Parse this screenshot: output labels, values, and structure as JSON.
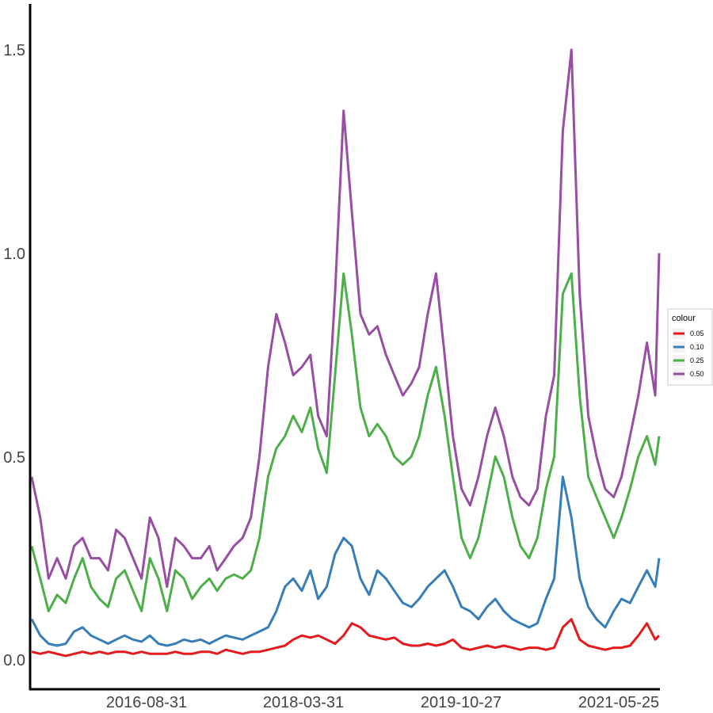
{
  "chart_data": {
    "type": "line",
    "title": "",
    "xlabel": "",
    "ylabel": "",
    "x_ticks": [
      "2016-08-31",
      "2018-03-31",
      "2019-10-27",
      "2021-05-25"
    ],
    "x_range": [
      "2015-05-01",
      "2021-07-15"
    ],
    "y_ticks": [
      "0.0",
      "0.5",
      "1.0",
      "1.5"
    ],
    "y_tick_values": [
      0.0,
      0.5,
      1.0,
      1.5
    ],
    "ylim": [
      -0.07,
      1.62
    ],
    "grid": false,
    "legend": {
      "title": "colour",
      "position": "right"
    },
    "x": [
      "2015-05-01",
      "2015-06-01",
      "2015-07-01",
      "2015-08-01",
      "2015-09-01",
      "2015-10-01",
      "2015-11-01",
      "2015-12-01",
      "2016-01-01",
      "2016-02-01",
      "2016-03-01",
      "2016-04-01",
      "2016-05-01",
      "2016-06-01",
      "2016-07-01",
      "2016-08-01",
      "2016-09-01",
      "2016-10-01",
      "2016-11-01",
      "2016-12-01",
      "2017-01-01",
      "2017-02-01",
      "2017-03-01",
      "2017-04-01",
      "2017-05-01",
      "2017-06-01",
      "2017-07-01",
      "2017-08-01",
      "2017-09-01",
      "2017-10-01",
      "2017-11-01",
      "2017-12-01",
      "2018-01-01",
      "2018-02-01",
      "2018-03-01",
      "2018-04-01",
      "2018-05-01",
      "2018-06-01",
      "2018-07-01",
      "2018-08-01",
      "2018-09-01",
      "2018-10-01",
      "2018-11-01",
      "2018-12-01",
      "2019-01-01",
      "2019-02-01",
      "2019-03-01",
      "2019-04-01",
      "2019-05-01",
      "2019-06-01",
      "2019-07-01",
      "2019-08-01",
      "2019-09-01",
      "2019-10-01",
      "2019-11-01",
      "2019-12-01",
      "2020-01-01",
      "2020-02-01",
      "2020-03-01",
      "2020-04-01",
      "2020-05-01",
      "2020-06-01",
      "2020-07-01",
      "2020-08-01",
      "2020-09-01",
      "2020-10-01",
      "2020-11-01",
      "2020-12-01",
      "2021-01-01",
      "2021-02-01",
      "2021-03-01",
      "2021-04-01",
      "2021-05-01",
      "2021-06-01",
      "2021-07-01",
      "2021-07-15"
    ],
    "series": [
      {
        "name": "0.05",
        "color": "#E41A1C",
        "values": [
          0.02,
          0.015,
          0.02,
          0.015,
          0.01,
          0.015,
          0.02,
          0.015,
          0.02,
          0.015,
          0.02,
          0.02,
          0.015,
          0.02,
          0.015,
          0.015,
          0.015,
          0.02,
          0.015,
          0.015,
          0.02,
          0.02,
          0.015,
          0.025,
          0.02,
          0.015,
          0.02,
          0.02,
          0.025,
          0.03,
          0.035,
          0.05,
          0.06,
          0.055,
          0.06,
          0.05,
          0.04,
          0.06,
          0.09,
          0.08,
          0.06,
          0.055,
          0.05,
          0.055,
          0.04,
          0.035,
          0.035,
          0.04,
          0.035,
          0.04,
          0.05,
          0.03,
          0.025,
          0.03,
          0.035,
          0.03,
          0.035,
          0.03,
          0.025,
          0.03,
          0.03,
          0.025,
          0.03,
          0.08,
          0.1,
          0.05,
          0.035,
          0.03,
          0.025,
          0.03,
          0.03,
          0.035,
          0.06,
          0.09,
          0.05,
          0.06
        ]
      },
      {
        "name": "0.10",
        "color": "#377EB8",
        "values": [
          0.1,
          0.06,
          0.04,
          0.035,
          0.04,
          0.07,
          0.08,
          0.06,
          0.05,
          0.04,
          0.05,
          0.06,
          0.05,
          0.045,
          0.06,
          0.04,
          0.035,
          0.04,
          0.05,
          0.045,
          0.05,
          0.04,
          0.05,
          0.06,
          0.055,
          0.05,
          0.06,
          0.07,
          0.08,
          0.12,
          0.18,
          0.2,
          0.17,
          0.22,
          0.15,
          0.18,
          0.26,
          0.3,
          0.28,
          0.2,
          0.16,
          0.22,
          0.2,
          0.17,
          0.14,
          0.13,
          0.15,
          0.18,
          0.2,
          0.22,
          0.18,
          0.13,
          0.12,
          0.1,
          0.13,
          0.15,
          0.12,
          0.1,
          0.09,
          0.08,
          0.09,
          0.15,
          0.2,
          0.45,
          0.35,
          0.2,
          0.13,
          0.1,
          0.08,
          0.12,
          0.15,
          0.14,
          0.18,
          0.22,
          0.18,
          0.25
        ]
      },
      {
        "name": "0.25",
        "color": "#4DAF4A",
        "values": [
          0.28,
          0.2,
          0.12,
          0.16,
          0.14,
          0.2,
          0.25,
          0.18,
          0.15,
          0.13,
          0.2,
          0.22,
          0.17,
          0.12,
          0.25,
          0.2,
          0.12,
          0.22,
          0.2,
          0.15,
          0.18,
          0.2,
          0.17,
          0.2,
          0.21,
          0.2,
          0.22,
          0.3,
          0.45,
          0.52,
          0.55,
          0.6,
          0.56,
          0.62,
          0.52,
          0.46,
          0.7,
          0.95,
          0.8,
          0.62,
          0.55,
          0.58,
          0.55,
          0.5,
          0.48,
          0.5,
          0.55,
          0.65,
          0.72,
          0.6,
          0.45,
          0.3,
          0.25,
          0.3,
          0.4,
          0.5,
          0.45,
          0.35,
          0.28,
          0.25,
          0.3,
          0.42,
          0.5,
          0.9,
          0.95,
          0.65,
          0.45,
          0.4,
          0.35,
          0.3,
          0.35,
          0.42,
          0.5,
          0.55,
          0.48,
          0.55
        ]
      },
      {
        "name": "0.50",
        "color": "#984EA3",
        "values": [
          0.45,
          0.35,
          0.2,
          0.25,
          0.2,
          0.28,
          0.3,
          0.25,
          0.25,
          0.22,
          0.32,
          0.3,
          0.25,
          0.2,
          0.35,
          0.3,
          0.18,
          0.3,
          0.28,
          0.25,
          0.25,
          0.28,
          0.22,
          0.25,
          0.28,
          0.3,
          0.35,
          0.5,
          0.72,
          0.85,
          0.78,
          0.7,
          0.72,
          0.75,
          0.6,
          0.55,
          0.9,
          1.35,
          1.1,
          0.85,
          0.8,
          0.82,
          0.75,
          0.7,
          0.65,
          0.68,
          0.72,
          0.85,
          0.95,
          0.75,
          0.55,
          0.42,
          0.38,
          0.45,
          0.55,
          0.62,
          0.55,
          0.45,
          0.4,
          0.38,
          0.42,
          0.6,
          0.7,
          1.3,
          1.5,
          0.9,
          0.6,
          0.5,
          0.42,
          0.4,
          0.45,
          0.55,
          0.65,
          0.78,
          0.65,
          1.0
        ]
      }
    ]
  }
}
